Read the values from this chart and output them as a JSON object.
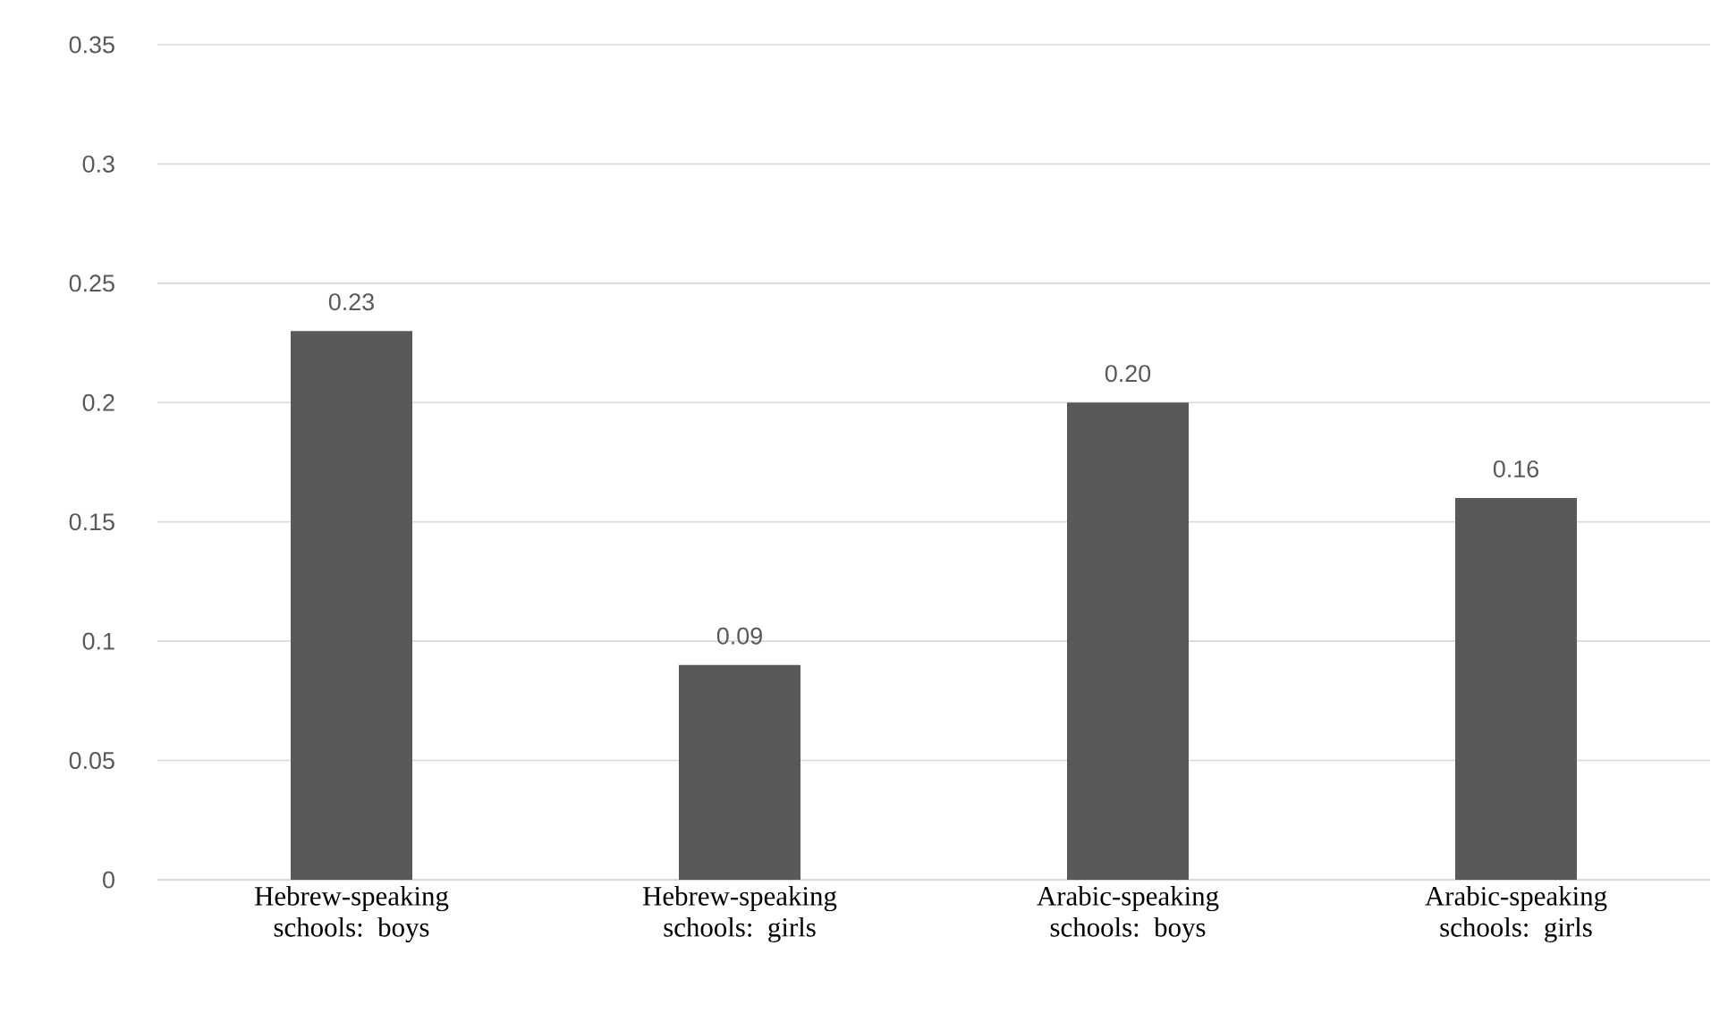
{
  "chart_data": {
    "type": "bar",
    "categories": [
      "Hebrew-speaking schools: boys",
      "Hebrew-speaking schools: girls",
      "Arabic-speaking schools: boys",
      "Arabic-speaking schools: girls"
    ],
    "values": [
      0.23,
      0.09,
      0.2,
      0.16
    ],
    "value_labels": [
      "0.23",
      "0.09",
      "0.20",
      "0.16"
    ],
    "color": "#595959",
    "ylim": [
      0,
      0.35
    ],
    "yticks": [
      0,
      0.05,
      0.1,
      0.15,
      0.2,
      0.25,
      0.3,
      0.35
    ],
    "grid": "y"
  }
}
